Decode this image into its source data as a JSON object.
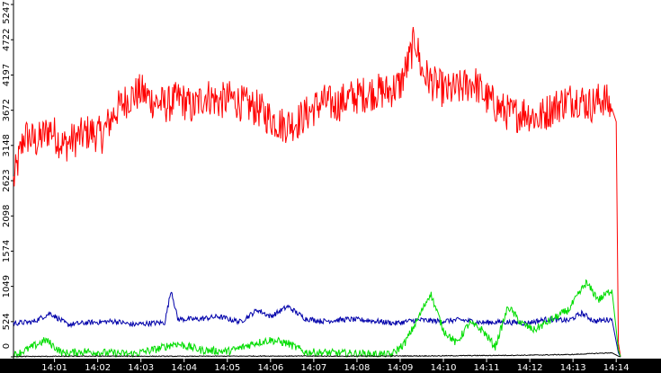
{
  "chart_data": {
    "type": "line",
    "title": "",
    "xlabel": "",
    "ylabel": "",
    "ylim": [
      0,
      5247
    ],
    "y_ticks": [
      0,
      524,
      1049,
      1574,
      2098,
      2623,
      3148,
      3672,
      4197,
      4722,
      5247
    ],
    "x_ticks": [
      "14:01",
      "14:02",
      "14:03",
      "14:04",
      "14:05",
      "14:06",
      "14:07",
      "14:08",
      "14:09",
      "14:10",
      "14:11",
      "14:12",
      "14:13",
      "14:14"
    ],
    "x_range_minutes": [
      0.05,
      14.1
    ],
    "grid": false,
    "legend": "none",
    "series": [
      {
        "color": "#ff0000",
        "points": [
          [
            0.05,
            2600
          ],
          [
            0.3,
            3300
          ],
          [
            0.6,
            3200
          ],
          [
            0.9,
            3400
          ],
          [
            1.2,
            3150
          ],
          [
            1.5,
            3250
          ],
          [
            1.8,
            3350
          ],
          [
            2.1,
            3300
          ],
          [
            2.4,
            3650
          ],
          [
            2.7,
            3850
          ],
          [
            3.0,
            3950
          ],
          [
            3.3,
            3800
          ],
          [
            3.6,
            3750
          ],
          [
            3.9,
            3850
          ],
          [
            4.2,
            3700
          ],
          [
            4.5,
            3900
          ],
          [
            4.8,
            3800
          ],
          [
            5.1,
            3850
          ],
          [
            5.4,
            3750
          ],
          [
            5.7,
            3700
          ],
          [
            6.0,
            3550
          ],
          [
            6.3,
            3450
          ],
          [
            6.6,
            3500
          ],
          [
            6.9,
            3650
          ],
          [
            7.2,
            3800
          ],
          [
            7.5,
            3750
          ],
          [
            7.8,
            3850
          ],
          [
            8.1,
            3900
          ],
          [
            8.4,
            3950
          ],
          [
            8.7,
            3950
          ],
          [
            9.0,
            4050
          ],
          [
            9.2,
            4400
          ],
          [
            9.35,
            4750
          ],
          [
            9.5,
            4250
          ],
          [
            9.8,
            4050
          ],
          [
            10.1,
            3950
          ],
          [
            10.4,
            4000
          ],
          [
            10.7,
            4100
          ],
          [
            11.0,
            3850
          ],
          [
            11.3,
            3700
          ],
          [
            11.6,
            3600
          ],
          [
            11.9,
            3650
          ],
          [
            12.2,
            3550
          ],
          [
            12.5,
            3700
          ],
          [
            12.8,
            3800
          ],
          [
            13.1,
            3850
          ],
          [
            13.4,
            3750
          ],
          [
            13.7,
            3850
          ],
          [
            13.9,
            3700
          ],
          [
            14.0,
            3500
          ],
          [
            14.05,
            200
          ],
          [
            14.1,
            0
          ]
        ]
      },
      {
        "color": "#0000aa",
        "points": [
          [
            0.05,
            500
          ],
          [
            0.5,
            520
          ],
          [
            0.9,
            650
          ],
          [
            1.3,
            480
          ],
          [
            1.8,
            510
          ],
          [
            2.4,
            530
          ],
          [
            2.8,
            480
          ],
          [
            3.2,
            500
          ],
          [
            3.55,
            510
          ],
          [
            3.7,
            1000
          ],
          [
            3.85,
            560
          ],
          [
            4.3,
            560
          ],
          [
            4.8,
            600
          ],
          [
            5.3,
            520
          ],
          [
            5.7,
            700
          ],
          [
            6.0,
            600
          ],
          [
            6.4,
            750
          ],
          [
            6.8,
            570
          ],
          [
            7.2,
            530
          ],
          [
            7.8,
            560
          ],
          [
            8.3,
            540
          ],
          [
            8.9,
            500
          ],
          [
            9.4,
            550
          ],
          [
            9.9,
            530
          ],
          [
            10.4,
            550
          ],
          [
            10.9,
            510
          ],
          [
            11.4,
            520
          ],
          [
            11.9,
            500
          ],
          [
            12.4,
            560
          ],
          [
            12.9,
            540
          ],
          [
            13.2,
            650
          ],
          [
            13.5,
            530
          ],
          [
            13.9,
            560
          ],
          [
            14.05,
            60
          ],
          [
            14.1,
            0
          ]
        ]
      },
      {
        "color": "#00dd00",
        "points": [
          [
            0.05,
            20
          ],
          [
            0.4,
            120
          ],
          [
            0.8,
            250
          ],
          [
            1.2,
            50
          ],
          [
            1.7,
            80
          ],
          [
            2.2,
            60
          ],
          [
            2.8,
            40
          ],
          [
            3.4,
            120
          ],
          [
            3.8,
            200
          ],
          [
            4.4,
            100
          ],
          [
            5.0,
            80
          ],
          [
            5.3,
            130
          ],
          [
            5.6,
            200
          ],
          [
            6.0,
            250
          ],
          [
            6.4,
            200
          ],
          [
            6.8,
            70
          ],
          [
            7.3,
            60
          ],
          [
            7.8,
            50
          ],
          [
            8.3,
            40
          ],
          [
            8.8,
            30
          ],
          [
            9.1,
            200
          ],
          [
            9.4,
            550
          ],
          [
            9.7,
            950
          ],
          [
            10.0,
            400
          ],
          [
            10.3,
            200
          ],
          [
            10.6,
            500
          ],
          [
            10.9,
            400
          ],
          [
            11.2,
            150
          ],
          [
            11.5,
            750
          ],
          [
            11.8,
            500
          ],
          [
            12.1,
            400
          ],
          [
            12.5,
            550
          ],
          [
            12.9,
            700
          ],
          [
            13.3,
            1100
          ],
          [
            13.6,
            850
          ],
          [
            13.9,
            1000
          ],
          [
            14.05,
            100
          ],
          [
            14.1,
            0
          ]
        ]
      },
      {
        "color": "#000000",
        "points": [
          [
            0.05,
            5
          ],
          [
            2.0,
            10
          ],
          [
            4.0,
            8
          ],
          [
            6.0,
            12
          ],
          [
            8.0,
            10
          ],
          [
            10.0,
            15
          ],
          [
            12.0,
            25
          ],
          [
            13.0,
            35
          ],
          [
            13.5,
            50
          ],
          [
            13.9,
            60
          ],
          [
            14.05,
            10
          ],
          [
            14.1,
            0
          ]
        ]
      }
    ]
  }
}
